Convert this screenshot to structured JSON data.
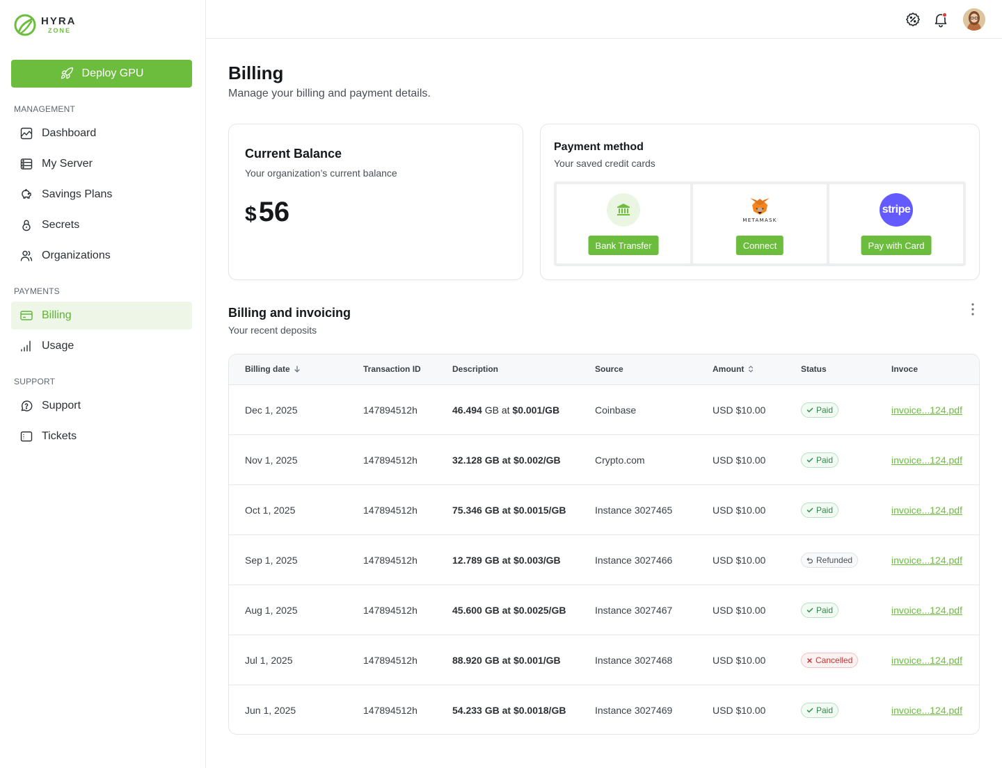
{
  "brand": {
    "name": "HYRA",
    "sub": "ZONE",
    "accent": "#6cbd3d"
  },
  "sidebar": {
    "deploy_label": "Deploy GPU",
    "sections": [
      {
        "label": "MANAGEMENT"
      },
      {
        "label": "PAYMENTS"
      },
      {
        "label": "SUPPORT"
      }
    ],
    "items": [
      {
        "label": "Dashboard",
        "icon": "chart-icon"
      },
      {
        "label": "My Server",
        "icon": "server-icon"
      },
      {
        "label": "Savings Plans",
        "icon": "piggy-bank-icon"
      },
      {
        "label": "Secrets",
        "icon": "lock-icon"
      },
      {
        "label": "Organizations",
        "icon": "users-icon"
      },
      {
        "label": "Billing",
        "icon": "credit-card-icon",
        "active": true
      },
      {
        "label": "Usage",
        "icon": "bar-chart-icon"
      },
      {
        "label": "Support",
        "icon": "help-circle-icon"
      },
      {
        "label": "Tickets",
        "icon": "ticket-icon"
      }
    ]
  },
  "header": {
    "icons": [
      "discount-icon",
      "bell-icon",
      "avatar"
    ]
  },
  "page": {
    "title": "Billing",
    "subtitle": "Manage your billing and payment details."
  },
  "balance": {
    "title": "Current Balance",
    "subtitle": "Your organization’s current balance",
    "currency": "$",
    "amount": "56"
  },
  "payment": {
    "title": "Payment method",
    "subtitle": "Your saved credit cards",
    "options": [
      {
        "label": "Bank Transfer",
        "icon": "bank-icon"
      },
      {
        "label": "Connect",
        "icon": "metamask-icon",
        "logo_text": "METAMASK"
      },
      {
        "label": "Pay with Card",
        "icon": "stripe-icon",
        "logo_text": "stripe"
      }
    ]
  },
  "invoices": {
    "title": "Billing and invoicing",
    "subtitle": "Your recent deposits",
    "columns": [
      "Billing date",
      "Transaction ID",
      "Description",
      "Source",
      "Amount",
      "Status",
      "Invoce"
    ],
    "rows": [
      {
        "date": "Dec 1, 2025",
        "txid": "147894512h",
        "desc_gb": "46.494",
        "desc_unit": " GB at ",
        "desc_price": "$0.001/GB",
        "source": "Coinbase",
        "amount": "USD $10.00",
        "status": "Paid",
        "status_kind": "paid",
        "invoice": "invoice...124.pdf"
      },
      {
        "date": "Nov 1, 2025",
        "txid": "147894512h",
        "desc_gb": "32.128",
        "desc_unit": " GB at ",
        "desc_price": "$0.002/GB",
        "source": "Crypto.com",
        "amount": "USD $10.00",
        "status": "Paid",
        "status_kind": "paid",
        "invoice": "invoice...124.pdf"
      },
      {
        "date": "Oct 1, 2025",
        "txid": "147894512h",
        "desc_gb": "75.346",
        "desc_unit": " GB at ",
        "desc_price": "$0.0015/GB",
        "source": "Instance 3027465",
        "amount": "USD $10.00",
        "status": "Paid",
        "status_kind": "paid",
        "invoice": "invoice...124.pdf"
      },
      {
        "date": "Sep 1, 2025",
        "txid": "147894512h",
        "desc_gb": "12.789",
        "desc_unit": " GB at ",
        "desc_price": "$0.003/GB",
        "source": "Instance 3027466",
        "amount": "USD $10.00",
        "status": "Refunded",
        "status_kind": "refunded",
        "invoice": "invoice...124.pdf"
      },
      {
        "date": "Aug 1, 2025",
        "txid": "147894512h",
        "desc_gb": "45.600",
        "desc_unit": " GB at ",
        "desc_price": "$0.0025/GB",
        "source": "Instance 3027467",
        "amount": "USD $10.00",
        "status": "Paid",
        "status_kind": "paid",
        "invoice": "invoice...124.pdf"
      },
      {
        "date": "Jul 1, 2025",
        "txid": "147894512h",
        "desc_gb": "88.920",
        "desc_unit": " GB at ",
        "desc_price": "$0.001/GB",
        "source": "Instance 3027468",
        "amount": "USD $10.00",
        "status": "Cancelled",
        "status_kind": "cancelled",
        "invoice": "invoice...124.pdf"
      },
      {
        "date": "Jun 1, 2025",
        "txid": "147894512h",
        "desc_gb": "54.233",
        "desc_unit": " GB at ",
        "desc_price": "$0.0018/GB",
        "source": "Instance 3027469",
        "amount": "USD $10.00",
        "status": "Paid",
        "status_kind": "paid",
        "invoice": "invoice...124.pdf"
      }
    ]
  }
}
